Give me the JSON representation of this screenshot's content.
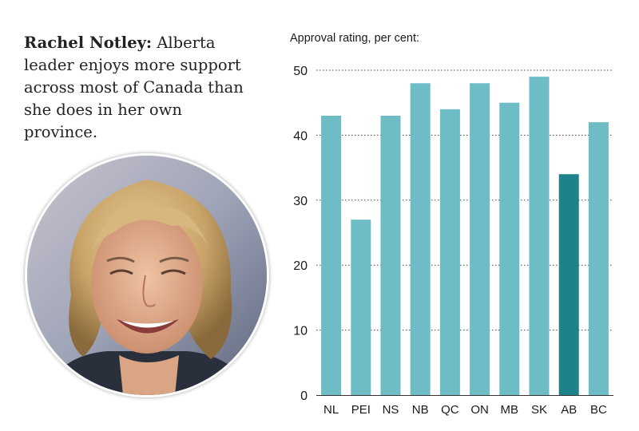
{
  "caption": {
    "name": "Rachel Notley:",
    "text": "Alberta leader enjoys more support across most of Canada than she does in her own province."
  },
  "photo": {
    "subject": "Rachel Notley"
  },
  "colors": {
    "bar": "#6dbcc6",
    "highlight": "#1f8189",
    "grid": "#444444",
    "text": "#1a1a1a"
  },
  "chart_data": {
    "type": "bar",
    "title": "Approval rating, per cent:",
    "xlabel": "",
    "ylabel": "",
    "categories": [
      "NL",
      "PEI",
      "NS",
      "NB",
      "QC",
      "ON",
      "MB",
      "SK",
      "AB",
      "BC"
    ],
    "values": [
      43,
      27,
      43,
      48,
      44,
      48,
      45,
      49,
      34,
      42
    ],
    "highlight": "AB",
    "ylim": [
      0,
      50
    ],
    "yticks": [
      0,
      10,
      20,
      30,
      40,
      50
    ],
    "grid": "dotted horizontal"
  }
}
